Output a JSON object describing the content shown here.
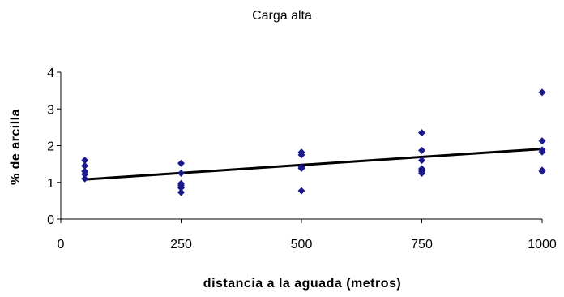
{
  "chart_data": {
    "type": "scatter",
    "title": "Carga alta",
    "xlabel": "distancia a la aguada (metros)",
    "ylabel": "% de arcilla",
    "xlim": [
      0,
      1000
    ],
    "ylim": [
      0,
      4
    ],
    "x_ticks": [
      0,
      250,
      500,
      750,
      1000
    ],
    "y_ticks": [
      0,
      1,
      2,
      3,
      4
    ],
    "x_tick_labels": [
      "0",
      "250",
      "500",
      "750",
      "1000"
    ],
    "y_tick_labels": [
      "0",
      "1",
      "2",
      "3",
      "4"
    ],
    "grid": false,
    "legend": "none",
    "colors": {
      "points": "#1a1a8c",
      "trendline": "#000000",
      "axes": "#000000"
    },
    "series": [
      {
        "type": "scatter",
        "marker": "diamond",
        "points": [
          {
            "x": 50,
            "y": 1.6
          },
          {
            "x": 50,
            "y": 1.45
          },
          {
            "x": 50,
            "y": 1.3
          },
          {
            "x": 50,
            "y": 1.22
          },
          {
            "x": 50,
            "y": 1.1
          },
          {
            "x": 250,
            "y": 1.52
          },
          {
            "x": 250,
            "y": 1.25
          },
          {
            "x": 250,
            "y": 0.97
          },
          {
            "x": 250,
            "y": 0.92
          },
          {
            "x": 250,
            "y": 0.85
          },
          {
            "x": 250,
            "y": 0.73
          },
          {
            "x": 500,
            "y": 1.82
          },
          {
            "x": 500,
            "y": 1.75
          },
          {
            "x": 500,
            "y": 1.42
          },
          {
            "x": 500,
            "y": 1.38
          },
          {
            "x": 500,
            "y": 0.77
          },
          {
            "x": 750,
            "y": 2.35
          },
          {
            "x": 750,
            "y": 1.87
          },
          {
            "x": 750,
            "y": 1.6
          },
          {
            "x": 750,
            "y": 1.37
          },
          {
            "x": 750,
            "y": 1.3
          },
          {
            "x": 750,
            "y": 1.25
          },
          {
            "x": 1000,
            "y": 3.45
          },
          {
            "x": 1000,
            "y": 2.13
          },
          {
            "x": 1000,
            "y": 1.88
          },
          {
            "x": 1000,
            "y": 1.83
          },
          {
            "x": 1000,
            "y": 1.33
          },
          {
            "x": 1000,
            "y": 1.3
          }
        ]
      },
      {
        "type": "line",
        "points": [
          {
            "x": 50,
            "y": 1.08
          },
          {
            "x": 1000,
            "y": 1.91
          }
        ]
      }
    ]
  }
}
